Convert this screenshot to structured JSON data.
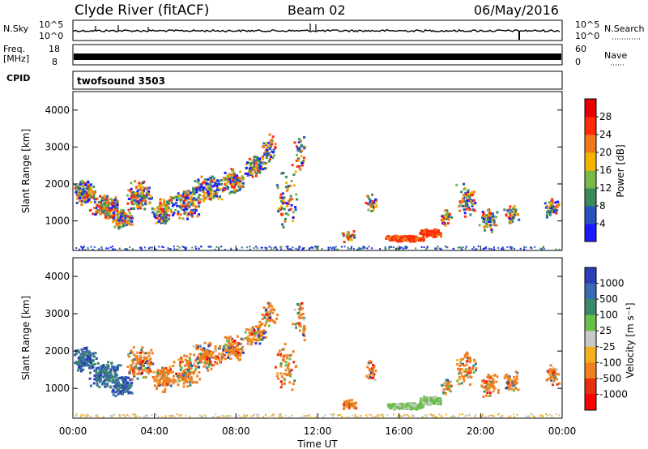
{
  "header": {
    "station": "Clyde River (fitACF)",
    "beam": "Beam 02",
    "date": "06/May/2016"
  },
  "panels": {
    "nsky_label": "N.Sky",
    "nsky_ticks": [
      "10^5",
      "10^0"
    ],
    "nsearch_label": "N.Search",
    "nsearch_ticks": [
      "10^5",
      "10^0"
    ],
    "freq_label": "Freq.",
    "freq_unit": "[MHz]",
    "freq_ticks": [
      "18",
      "8"
    ],
    "nave_label": "Nave",
    "nave_ticks": [
      "60",
      "0"
    ],
    "cpid_label": "CPID",
    "cpid_value": "twofsound 3503"
  },
  "chart_data": [
    {
      "type": "heatmap",
      "name": "power",
      "ylabel": "Slant Range [km]",
      "ylim": [
        200,
        4500
      ],
      "yticks": [
        "1000",
        "2000",
        "3000",
        "4000"
      ],
      "colorbar_label": "Power [dB]",
      "colorbar_ticks": [
        "4",
        "8",
        "12",
        "16",
        "20",
        "24",
        "28"
      ],
      "colors": [
        "#1a1aff",
        "#2a52be",
        "#3a8a5a",
        "#7ab84a",
        "#f2b400",
        "#f07a1a",
        "#ff2a0a",
        "#e80000"
      ]
    },
    {
      "type": "heatmap",
      "name": "velocity",
      "ylabel": "Slant Range [km]",
      "ylim": [
        200,
        4500
      ],
      "yticks": [
        "1000",
        "2000",
        "3000",
        "4000"
      ],
      "xlabel": "Time UT",
      "xticks": [
        "00:00",
        "04:00",
        "08:00",
        "12:00",
        "16:00",
        "20:00",
        "00:00"
      ],
      "colorbar_label": "Velocity [m s⁻¹]",
      "colorbar_ticks": [
        "1000",
        "500",
        "100",
        "25",
        "-25",
        "-100",
        "-500",
        "-1000"
      ],
      "colors": [
        "#2a3fb8",
        "#3a6ab0",
        "#3a8a6a",
        "#6abf4a",
        "#c8c8c8",
        "#f5b020",
        "#f08020",
        "#e83010",
        "#ff0000"
      ]
    }
  ]
}
